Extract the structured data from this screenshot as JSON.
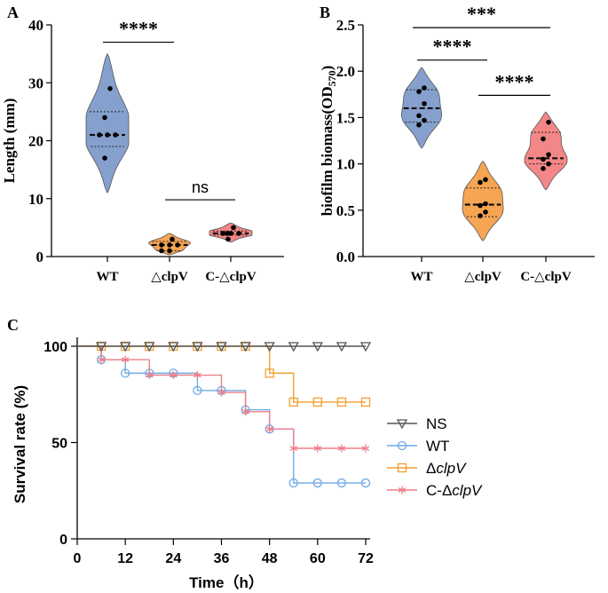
{
  "chart_data": [
    {
      "type": "violin",
      "panel_label": "A",
      "ylabel": "Length (mm)",
      "categories": [
        "WT",
        "△clpV",
        "C-△clpV"
      ],
      "ylim": [
        0,
        40
      ],
      "yticks": [
        "0",
        "10",
        "20",
        "30",
        "40"
      ],
      "colors": [
        "#7f9bcb",
        "#f5a04a",
        "#f27f7f"
      ],
      "series": [
        {
          "name": "WT",
          "points": [
            29,
            24,
            21,
            21,
            21,
            17
          ],
          "median": 21,
          "q1": 19,
          "q3": 25,
          "violin_range": [
            11,
            35
          ]
        },
        {
          "name": "△clpV",
          "points": [
            3,
            2,
            2,
            2,
            1,
            1
          ],
          "median": 2,
          "q1": 1,
          "q3": 2.6,
          "violin_range": [
            0.3,
            4
          ]
        },
        {
          "name": "C-△clpV",
          "points": [
            5,
            4,
            4,
            4,
            4,
            3
          ],
          "median": 4,
          "q1": 3.7,
          "q3": 4.4,
          "violin_range": [
            2.5,
            5.8
          ]
        }
      ],
      "significance": [
        {
          "from": 0,
          "to": 1,
          "y": 37,
          "label": "****"
        },
        {
          "from": 1,
          "to": 2,
          "y": 9.8,
          "label": "ns"
        }
      ]
    },
    {
      "type": "violin",
      "panel_label": "B",
      "ylabel": "biofilm biomass(OD",
      "ylabel_sub": "570",
      "ylabel_end": ")",
      "categories": [
        "WT",
        "△clpV",
        "C-△clpV"
      ],
      "ylim": [
        0,
        2.5
      ],
      "yticks": [
        "0.0",
        "0.5",
        "1.0",
        "1.5",
        "2.0",
        "2.5"
      ],
      "colors": [
        "#7f9bcb",
        "#f5a04a",
        "#f27f7f"
      ],
      "series": [
        {
          "name": "WT",
          "points": [
            1.82,
            1.78,
            1.65,
            1.52,
            1.47,
            1.42
          ],
          "median": 1.6,
          "q1": 1.45,
          "q3": 1.8,
          "violin_range": [
            1.17,
            2.04
          ]
        },
        {
          "name": "△clpV",
          "points": [
            0.83,
            0.8,
            0.57,
            0.55,
            0.48,
            0.44
          ],
          "median": 0.56,
          "q1": 0.43,
          "q3": 0.74,
          "violin_range": [
            0.17,
            1.03
          ]
        },
        {
          "name": "C-△clpV",
          "points": [
            1.45,
            1.27,
            1.1,
            1.05,
            1.0,
            0.95
          ],
          "median": 1.06,
          "q1": 1.0,
          "q3": 1.34,
          "violin_range": [
            0.72,
            1.56
          ]
        }
      ],
      "significance": [
        {
          "from": 0,
          "to": 1,
          "y": 2.12,
          "label": "****"
        },
        {
          "from": 0,
          "to": 2,
          "y": 2.47,
          "label": "***"
        },
        {
          "from": 1,
          "to": 2,
          "y": 1.74,
          "label": "****"
        }
      ]
    },
    {
      "type": "line",
      "step": true,
      "panel_label": "C",
      "xlabel": "Time（h）",
      "ylabel": "Survival rate (%)",
      "xlim": [
        0,
        72
      ],
      "ylim": [
        0,
        100
      ],
      "xticks": [
        "0",
        "12",
        "24",
        "36",
        "48",
        "60",
        "72"
      ],
      "yticks": [
        "0",
        "50",
        "100"
      ],
      "series": [
        {
          "name": "NS",
          "italic": "",
          "color": "#555555",
          "marker": "triangle",
          "x": [
            0,
            72
          ],
          "y": [
            100,
            100
          ],
          "marker_x": [
            6,
            12,
            18,
            24,
            30,
            36,
            42,
            48,
            54,
            60,
            66,
            72
          ]
        },
        {
          "name": "WT",
          "italic": "",
          "color": "#6fa9e6",
          "marker": "circle",
          "x": [
            0,
            6,
            12,
            24,
            30,
            42,
            48,
            54,
            72
          ],
          "y": [
            100,
            93,
            86,
            86,
            77,
            67,
            57,
            29,
            29
          ],
          "marker_x": [
            6,
            12,
            18,
            24,
            30,
            36,
            42,
            48,
            54,
            60,
            66,
            72
          ]
        },
        {
          "name": "Δ",
          "italic": "clpV",
          "color": "#f0a030",
          "marker": "square",
          "x": [
            0,
            48,
            54,
            72
          ],
          "y": [
            100,
            86,
            71,
            71
          ],
          "marker_x": [
            6,
            12,
            18,
            24,
            30,
            36,
            42,
            48,
            54,
            60,
            66,
            72
          ]
        },
        {
          "name": "C-Δ",
          "italic": "clpV",
          "color": "#ee7f88",
          "marker": "asterisk",
          "x": [
            0,
            6,
            18,
            36,
            42,
            48,
            54,
            72
          ],
          "y": [
            100,
            93,
            85,
            76,
            66,
            57,
            47,
            47
          ],
          "marker_x": [
            6,
            12,
            18,
            24,
            30,
            36,
            42,
            48,
            54,
            60,
            66,
            72
          ]
        }
      ]
    }
  ]
}
